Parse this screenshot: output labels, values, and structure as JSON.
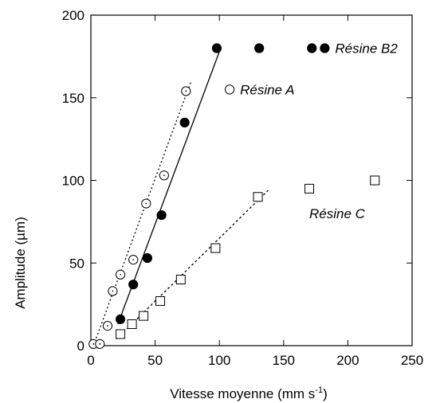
{
  "chart_data": {
    "type": "scatter",
    "title": "",
    "xlabel_main": "Vitesse moyenne (mm s",
    "xlabel_sup": "-1",
    "xlabel_end": ")",
    "ylabel": "Amplitude (µm)",
    "xlim": [
      0,
      250
    ],
    "ylim": [
      0,
      200
    ],
    "xticks": [
      "0",
      "50",
      "100",
      "150",
      "200",
      "250"
    ],
    "yticks": [
      "0",
      "50",
      "100",
      "150",
      "200"
    ],
    "grid": false,
    "series": [
      {
        "name": "Résine A",
        "marker": "circle-open-dotted",
        "points": [
          [
            2,
            1
          ],
          [
            7,
            1
          ],
          [
            13,
            12
          ],
          [
            17,
            33
          ],
          [
            23,
            43
          ],
          [
            33,
            52
          ],
          [
            43,
            86
          ],
          [
            57,
            103
          ],
          [
            74,
            154
          ]
        ],
        "fit": {
          "style": "dotted",
          "x": [
            2,
            78
          ],
          "y": [
            0,
            160
          ]
        }
      },
      {
        "name": "Résine B2",
        "marker": "circle-filled",
        "points": [
          [
            23,
            16
          ],
          [
            33,
            37
          ],
          [
            44,
            53
          ],
          [
            55,
            79
          ],
          [
            73,
            135
          ],
          [
            98,
            180
          ],
          [
            131,
            180
          ],
          [
            172,
            180
          ]
        ],
        "fit": {
          "style": "solid",
          "x": [
            21,
            101
          ],
          "y": [
            13,
            180
          ]
        }
      },
      {
        "name": "Résine C",
        "marker": "square-open",
        "points": [
          [
            23,
            7
          ],
          [
            32,
            13
          ],
          [
            41,
            18
          ],
          [
            54,
            27
          ],
          [
            70,
            40
          ],
          [
            97,
            59
          ],
          [
            130,
            90
          ],
          [
            170,
            95
          ],
          [
            221,
            100
          ]
        ],
        "fit": {
          "style": "dashed",
          "x": [
            20,
            138
          ],
          "y": [
            4,
            94
          ]
        }
      }
    ],
    "annotations": [
      {
        "text": "Résine B2",
        "x": 182,
        "y": 180,
        "marker": "circle-filled"
      },
      {
        "text": "Résine A",
        "x": 108,
        "y": 155,
        "marker": "circle-open"
      },
      {
        "text": "Résine C",
        "x": 170,
        "y": 80,
        "marker": "none"
      }
    ]
  }
}
